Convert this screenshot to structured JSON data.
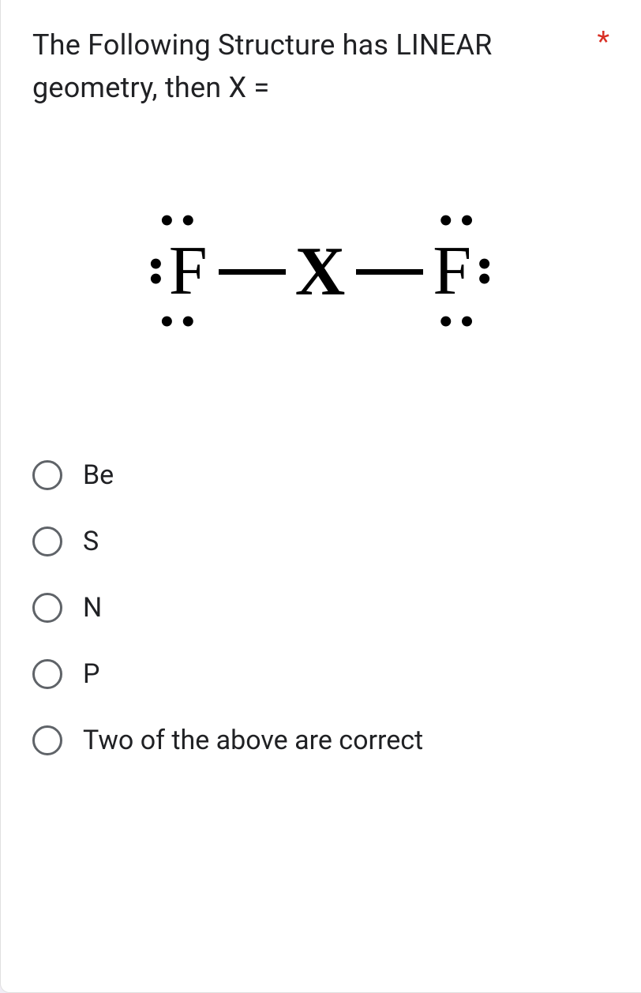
{
  "question": {
    "text": "The Following Structure has LINEAR geometry, then X =",
    "required_marker": "*"
  },
  "lewis_structure": {
    "left_atom": "F",
    "center_atom": "X",
    "right_atom": "F",
    "dot": "•",
    "text_color": "#000000",
    "font_family": "Times New Roman"
  },
  "options": [
    {
      "label": "Be"
    },
    {
      "label": "S"
    },
    {
      "label": "N"
    },
    {
      "label": "P"
    },
    {
      "label": "Two of the above are correct"
    }
  ],
  "styles": {
    "card_background": "#ffffff",
    "body_background": "#f0edf5",
    "text_color": "#202124",
    "radio_border_color": "#5f6368",
    "required_color": "#d93025"
  }
}
